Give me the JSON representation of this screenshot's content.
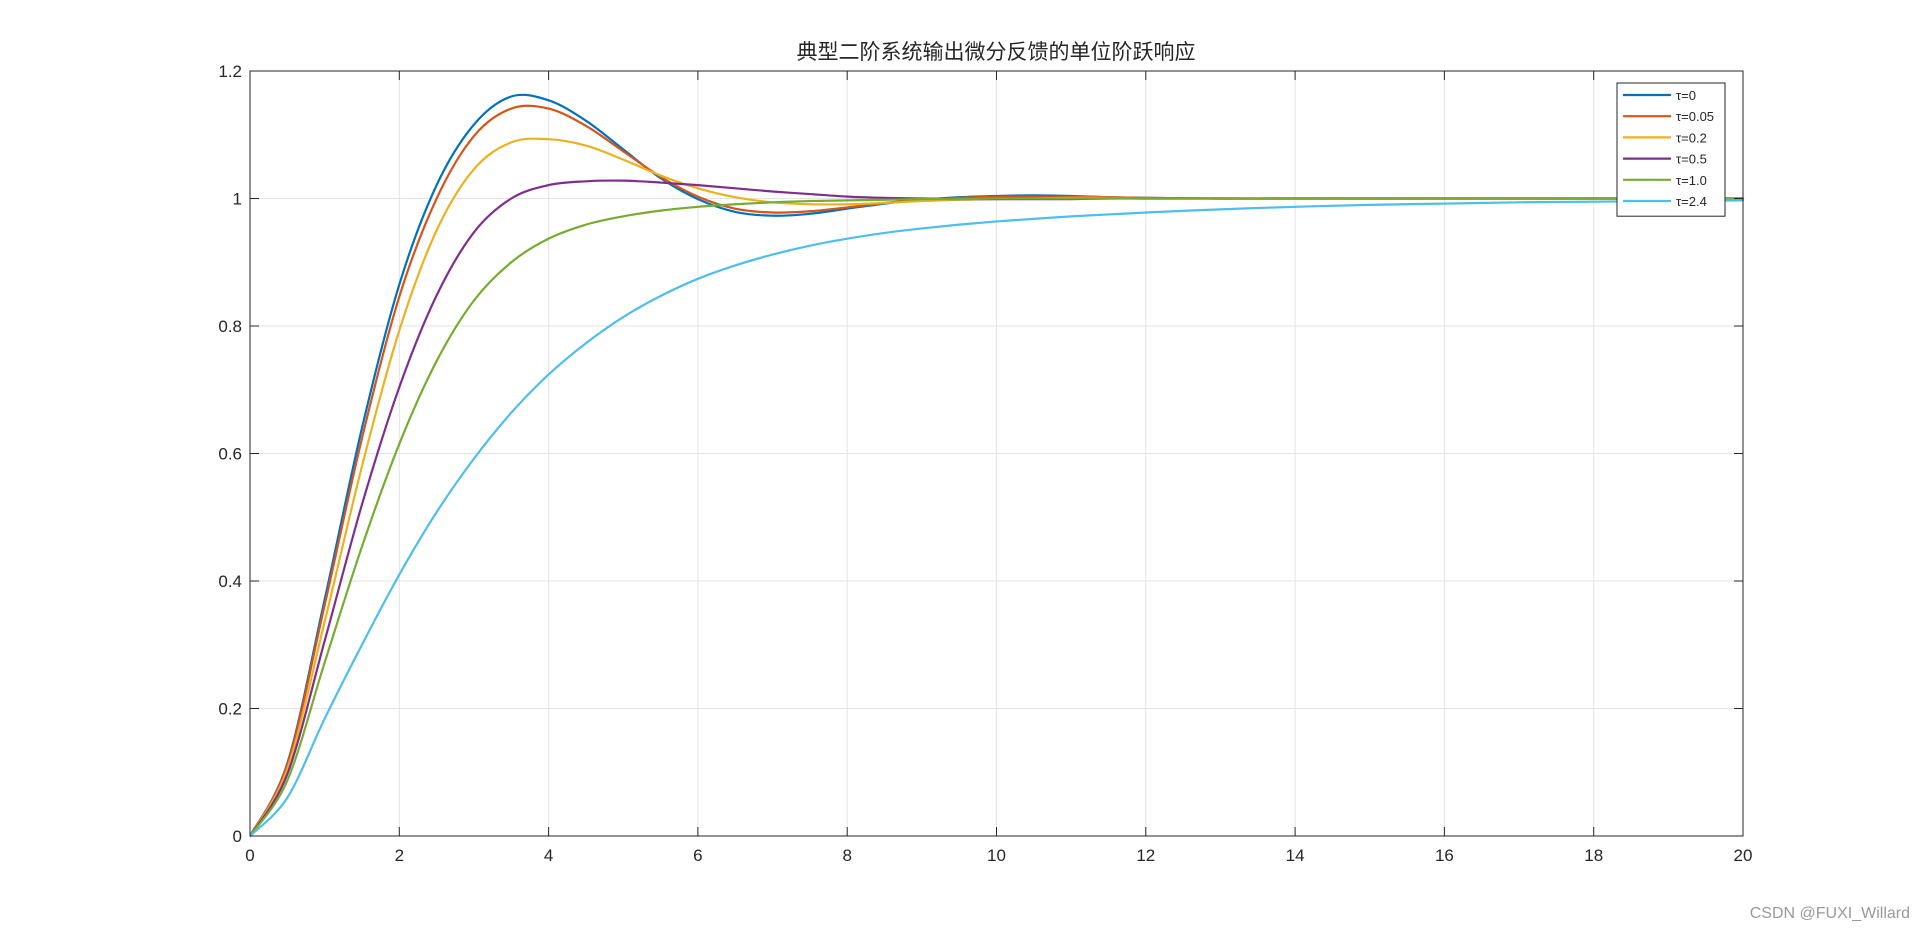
{
  "watermark": "CSDN @FUXI_Willard",
  "chart_data": {
    "type": "line",
    "title": "典型二阶系统输出微分反馈的单位阶跃响应",
    "xlabel": "",
    "ylabel": "",
    "xlim": [
      0,
      20
    ],
    "ylim": [
      0,
      1.2
    ],
    "x_ticks": [
      0,
      2,
      4,
      6,
      8,
      10,
      12,
      14,
      16,
      18,
      20
    ],
    "y_ticks": [
      0,
      0.2,
      0.4,
      0.6,
      0.8,
      1,
      1.2
    ],
    "x_tick_labels": [
      "0",
      "2",
      "4",
      "6",
      "8",
      "10",
      "12",
      "14",
      "16",
      "18",
      "20"
    ],
    "y_tick_labels": [
      "0",
      "0.2",
      "0.4",
      "0.6",
      "0.8",
      "1",
      "1.2"
    ],
    "grid": true,
    "legend_position": "top-right",
    "x": [
      0,
      0.5,
      1,
      1.5,
      2,
      2.5,
      3,
      3.5,
      4,
      4.5,
      5,
      5.5,
      6,
      6.5,
      7,
      7.5,
      8,
      8.5,
      9,
      9.5,
      10,
      10.5,
      11,
      11.5,
      12,
      13,
      14,
      15,
      16,
      17,
      18,
      19,
      20
    ],
    "series": [
      {
        "name": "τ=0",
        "color": "#0072BD",
        "values": [
          0,
          0.114,
          0.371,
          0.64,
          0.865,
          1.021,
          1.116,
          1.16,
          1.154,
          1.122,
          1.077,
          1.032,
          0.999,
          0.979,
          0.973,
          0.976,
          0.984,
          0.992,
          0.998,
          1.002,
          1.004,
          1.005,
          1.004,
          1.002,
          1.001,
          1.0,
          1.0,
          1.0,
          1.0,
          1.0,
          1.0,
          1.0,
          1.0
        ]
      },
      {
        "name": "τ=0.05",
        "color": "#D95319",
        "values": [
          0,
          0.112,
          0.362,
          0.624,
          0.846,
          1.0,
          1.098,
          1.141,
          1.141,
          1.114,
          1.074,
          1.034,
          1.003,
          0.984,
          0.978,
          0.98,
          0.986,
          0.993,
          0.998,
          1.001,
          1.003,
          1.003,
          1.003,
          1.002,
          1.001,
          1.0,
          1.0,
          1.0,
          1.0,
          1.0,
          1.0,
          1.0,
          1.0
        ]
      },
      {
        "name": "τ=0.2",
        "color": "#EDB120",
        "values": [
          0,
          0.105,
          0.336,
          0.58,
          0.793,
          0.95,
          1.046,
          1.088,
          1.093,
          1.083,
          1.061,
          1.036,
          1.016,
          1.002,
          0.994,
          0.991,
          0.991,
          0.993,
          0.996,
          0.998,
          0.999,
          1.0,
          1.001,
          1.001,
          1.0,
          1.0,
          1.0,
          1.0,
          1.0,
          1.0,
          1.0,
          1.0,
          1.0
        ]
      },
      {
        "name": "τ=0.5",
        "color": "#7E2F8E",
        "values": [
          0,
          0.097,
          0.306,
          0.52,
          0.704,
          0.848,
          0.947,
          1.0,
          1.021,
          1.027,
          1.028,
          1.025,
          1.021,
          1.016,
          1.011,
          1.007,
          1.003,
          1.001,
          1.0,
          0.999,
          0.999,
          0.999,
          0.999,
          1.0,
          1.0,
          1.0,
          1.0,
          1.0,
          1.0,
          1.0,
          1.0,
          1.0,
          1.0
        ]
      },
      {
        "name": "τ=1.0",
        "color": "#77AC30",
        "values": [
          0,
          0.087,
          0.272,
          0.454,
          0.615,
          0.745,
          0.84,
          0.9,
          0.937,
          0.959,
          0.972,
          0.981,
          0.987,
          0.991,
          0.994,
          0.996,
          0.997,
          0.998,
          0.999,
          0.999,
          1.0,
          1.0,
          1.0,
          1.0,
          1.0,
          1.0,
          1.0,
          1.0,
          1.0,
          1.0,
          1.0,
          1.0,
          1.0
        ]
      },
      {
        "name": "τ=2.4",
        "color": "#4DBEEE",
        "values": [
          0,
          0.06,
          0.184,
          0.3,
          0.41,
          0.508,
          0.592,
          0.664,
          0.724,
          0.773,
          0.814,
          0.847,
          0.874,
          0.895,
          0.912,
          0.926,
          0.937,
          0.946,
          0.953,
          0.959,
          0.964,
          0.968,
          0.972,
          0.975,
          0.978,
          0.983,
          0.987,
          0.99,
          0.992,
          0.994,
          0.995,
          0.996,
          0.997
        ]
      }
    ]
  }
}
